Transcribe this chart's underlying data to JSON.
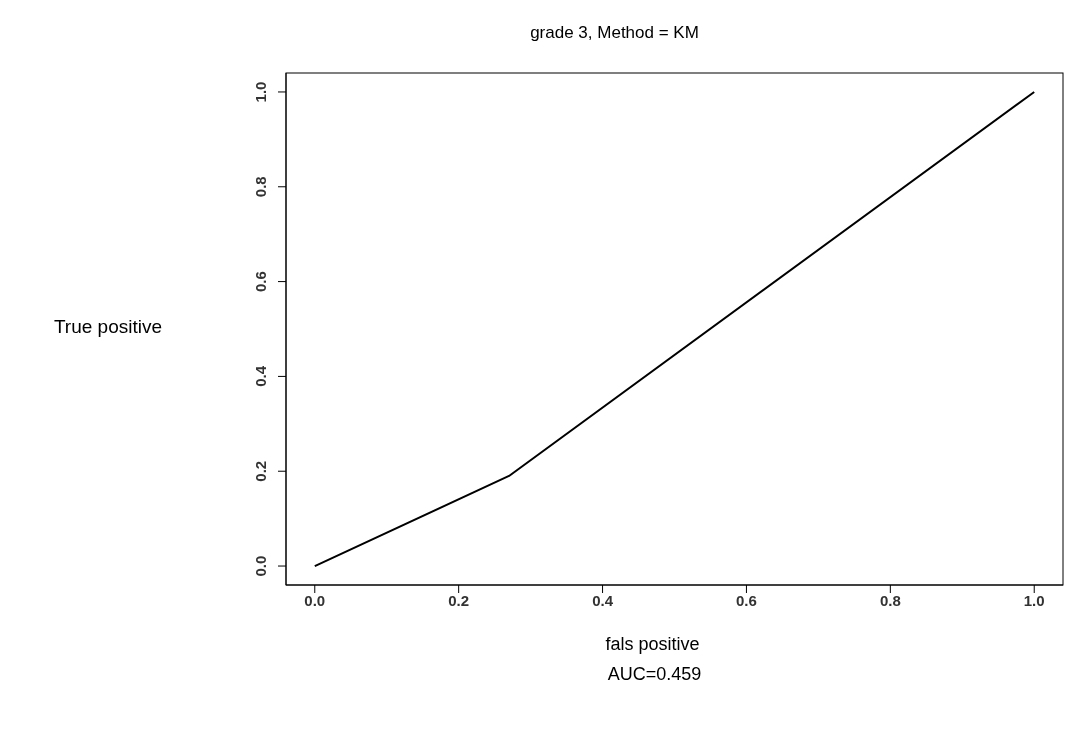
{
  "chart_data": {
    "type": "line",
    "title": "grade 3, Method = KM",
    "xlabel": "fals positive",
    "ylabel": "True positive",
    "annotations": [
      "AUC=0.459"
    ],
    "x": [
      0,
      0.27,
      1
    ],
    "series": [
      {
        "color": "#000000",
        "values": [
          0,
          0.19,
          1
        ]
      }
    ],
    "xlim": [
      -0.04,
      1.04
    ],
    "ylim": [
      -0.04,
      1.04
    ],
    "xticks": [
      {
        "value": 0,
        "label": "0.0"
      },
      {
        "value": 0.2,
        "label": "0.2"
      },
      {
        "value": 0.4,
        "label": "0.4"
      },
      {
        "value": 0.6,
        "label": "0.6"
      },
      {
        "value": 0.8,
        "label": "0.8"
      },
      {
        "value": 1,
        "label": "1.0"
      }
    ],
    "yticks": [
      {
        "value": 0,
        "label": "0.0"
      },
      {
        "value": 0.2,
        "label": "0.2"
      },
      {
        "value": 0.4,
        "label": "0.4"
      },
      {
        "value": 0.6,
        "label": "0.6"
      },
      {
        "value": 0.8,
        "label": "0.8"
      },
      {
        "value": 1,
        "label": "1.0"
      }
    ],
    "grid": false,
    "marker": "none",
    "line_style": "solid"
  }
}
